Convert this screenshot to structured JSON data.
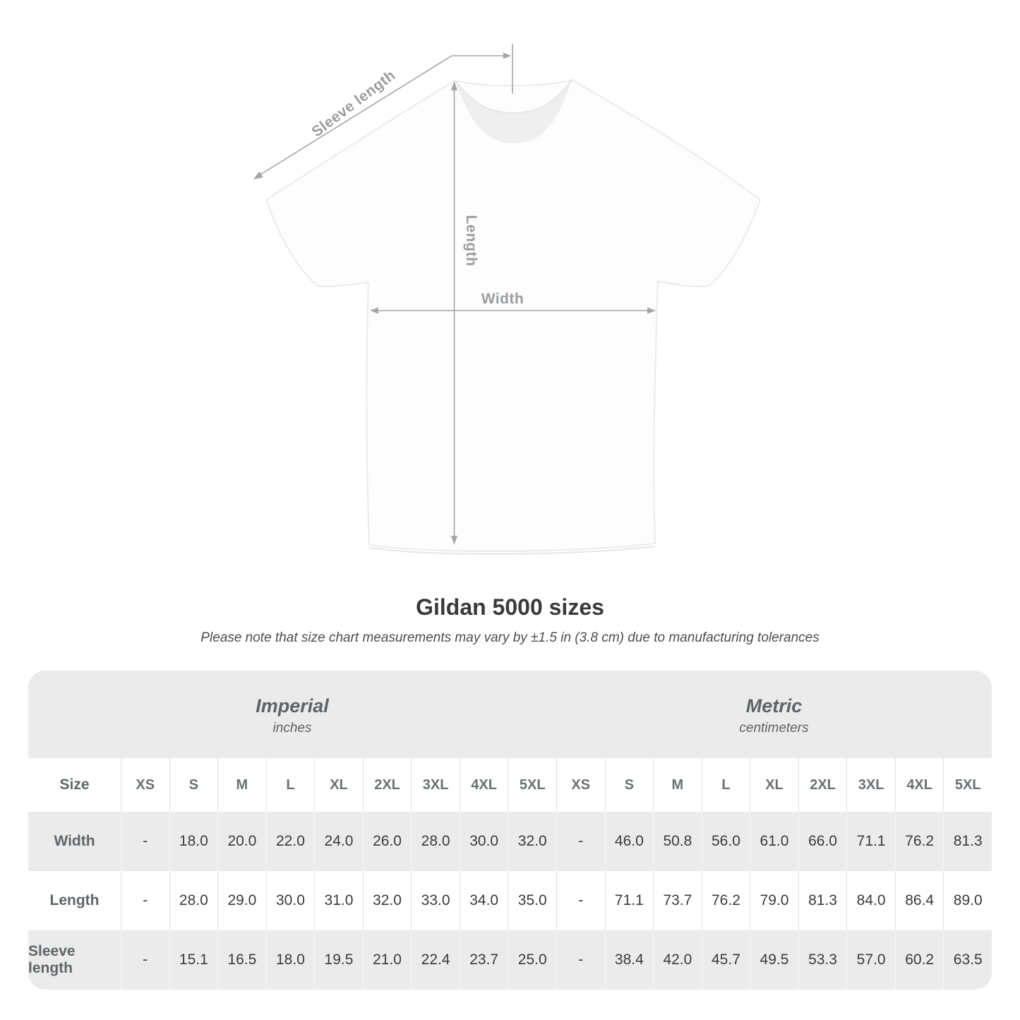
{
  "diagram": {
    "labels": {
      "sleeve_length": "Sleeve length",
      "length": "Length",
      "width": "Width"
    },
    "annotation_color": "#9a9da0"
  },
  "heading": {
    "title": "Gildan 5000 sizes",
    "subtitle": "Please note that size chart measurements may vary by ±1.5 in (3.8 cm) due to manufacturing tolerances"
  },
  "table": {
    "imperial": {
      "title": "Imperial",
      "unit": "inches"
    },
    "metric": {
      "title": "Metric",
      "unit": "centimeters"
    },
    "size_col_header": "Size",
    "sizes": [
      "XS",
      "S",
      "M",
      "L",
      "XL",
      "2XL",
      "3XL",
      "4XL",
      "5XL"
    ],
    "rows": [
      {
        "label": "Width",
        "imperial": [
          "-",
          "18.0",
          "20.0",
          "22.0",
          "24.0",
          "26.0",
          "28.0",
          "30.0",
          "32.0"
        ],
        "metric": [
          "-",
          "46.0",
          "50.8",
          "56.0",
          "61.0",
          "66.0",
          "71.1",
          "76.2",
          "81.3"
        ]
      },
      {
        "label": "Length",
        "imperial": [
          "-",
          "28.0",
          "29.0",
          "30.0",
          "31.0",
          "32.0",
          "33.0",
          "34.0",
          "35.0"
        ],
        "metric": [
          "-",
          "71.1",
          "73.7",
          "76.2",
          "79.0",
          "81.3",
          "84.0",
          "86.4",
          "89.0"
        ]
      },
      {
        "label": "Sleeve length",
        "imperial": [
          "-",
          "15.1",
          "16.5",
          "18.0",
          "19.5",
          "21.0",
          "22.4",
          "23.7",
          "25.0"
        ],
        "metric": [
          "-",
          "38.4",
          "42.0",
          "45.7",
          "49.5",
          "53.3",
          "57.0",
          "60.2",
          "63.5"
        ]
      }
    ],
    "colors": {
      "band_gray": "#ebebeb",
      "alt_row_gray": "#ebebeb",
      "separator_on_white": "#e3e3e3",
      "separator_on_gray": "#f6f6f6"
    }
  }
}
